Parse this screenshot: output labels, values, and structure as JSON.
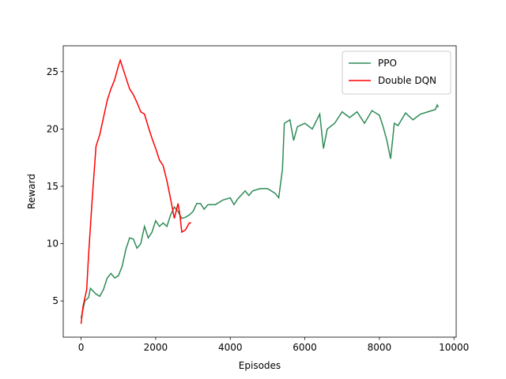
{
  "chart_data": {
    "type": "line",
    "x_label": "Episodes",
    "y_label": "Reward",
    "xlim": [
      -479,
      10059
    ],
    "ylim": [
      1.84,
      27.26
    ],
    "xticks": [
      0,
      2000,
      4000,
      6000,
      8000,
      10000
    ],
    "yticks": [
      5,
      10,
      15,
      20,
      25
    ],
    "grid": false,
    "legend": "upper right",
    "series": [
      {
        "name": "PPO",
        "color": "#2e8b57",
        "x": [
          0,
          100,
          200,
          250,
          400,
          500,
          600,
          700,
          800,
          900,
          1000,
          1100,
          1200,
          1300,
          1400,
          1500,
          1600,
          1700,
          1800,
          1900,
          2000,
          2100,
          2200,
          2300,
          2400,
          2500,
          2600,
          2700,
          2800,
          2900,
          3000,
          3100,
          3200,
          3300,
          3400,
          3600,
          3800,
          4000,
          4100,
          4200,
          4400,
          4500,
          4600,
          4800,
          5000,
          5200,
          5300,
          5400,
          5450,
          5600,
          5700,
          5800,
          6000,
          6200,
          6400,
          6500,
          6600,
          6800,
          7000,
          7200,
          7400,
          7600,
          7800,
          8000,
          8100,
          8200,
          8300,
          8400,
          8500,
          8700,
          8900,
          9100,
          9300,
          9500,
          9550,
          9580
        ],
        "values": [
          3.5,
          5,
          5.3,
          6.1,
          5.6,
          5.4,
          6.0,
          7.0,
          7.4,
          7.0,
          7.2,
          8,
          9.5,
          10.5,
          10.4,
          9.6,
          10.0,
          11.5,
          10.5,
          11,
          12.0,
          11.5,
          11.8,
          11.5,
          12.5,
          13.2,
          12.8,
          12.2,
          12.3,
          12.5,
          12.8,
          13.5,
          13.5,
          13.0,
          13.4,
          13.4,
          13.8,
          14.0,
          13.4,
          13.9,
          14.6,
          14.2,
          14.6,
          14.8,
          14.8,
          14.4,
          14.0,
          16.5,
          20.5,
          20.8,
          19.0,
          20.2,
          20.5,
          20.0,
          21.3,
          18.3,
          20.0,
          20.5,
          21.5,
          21.0,
          21.5,
          20.5,
          21.6,
          21.2,
          20.2,
          19.0,
          17.4,
          20.5,
          20.3,
          21.4,
          20.8,
          21.3,
          21.5,
          21.7,
          22.1,
          21.9
        ]
      },
      {
        "name": "Double DQN",
        "color": "#ff0000",
        "x": [
          0,
          50,
          150,
          200,
          300,
          400,
          500,
          600,
          700,
          800,
          900,
          1000,
          1050,
          1100,
          1200,
          1300,
          1400,
          1500,
          1600,
          1700,
          1800,
          1900,
          2000,
          2100,
          2200,
          2300,
          2400,
          2500,
          2600,
          2650,
          2700,
          2800,
          2900,
          2950
        ],
        "values": [
          3.0,
          4.5,
          6.0,
          9,
          14,
          18.5,
          19.5,
          21,
          22.5,
          23.5,
          24.3,
          25.5,
          26.0,
          25.5,
          24.5,
          23.5,
          23.0,
          22.3,
          21.5,
          21.3,
          20.2,
          19.2,
          18.3,
          17.3,
          16.8,
          15.5,
          13.9,
          12.2,
          13.5,
          12.5,
          11.0,
          11.2,
          11.8,
          11.8
        ]
      }
    ]
  }
}
